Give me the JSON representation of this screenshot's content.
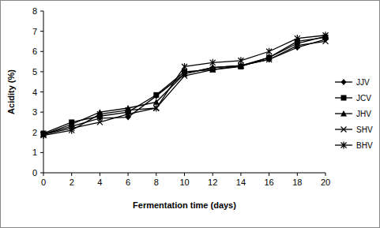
{
  "chart_data": {
    "type": "line",
    "x_label": "Fermentation time (days)",
    "y_label": "Acidity (%)",
    "x": [
      0,
      2,
      4,
      6,
      8,
      10,
      12,
      14,
      16,
      18,
      20
    ],
    "xlim": [
      0,
      20
    ],
    "xticks": [
      0,
      2,
      4,
      6,
      8,
      10,
      12,
      14,
      16,
      18,
      20
    ],
    "ylim": [
      0,
      8
    ],
    "yticks": [
      0,
      1,
      2,
      3,
      4,
      5,
      6,
      7,
      8
    ],
    "grid": false,
    "legend": "right",
    "series": [
      {
        "name": "JJV",
        "color": "#000000",
        "marker": "diamond",
        "values": [
          1.9,
          2.3,
          2.7,
          2.75,
          3.8,
          4.9,
          5.2,
          5.3,
          5.6,
          6.2,
          6.6
        ]
      },
      {
        "name": "JCV",
        "color": "#000000",
        "marker": "square",
        "values": [
          1.95,
          2.5,
          2.8,
          3.0,
          3.85,
          5.0,
          5.1,
          5.25,
          5.7,
          6.5,
          6.7
        ]
      },
      {
        "name": "JHV",
        "color": "#000000",
        "marker": "triangle",
        "values": [
          1.9,
          2.4,
          3.0,
          3.2,
          3.5,
          4.9,
          5.2,
          5.3,
          5.7,
          6.4,
          6.75
        ]
      },
      {
        "name": "SHV",
        "color": "#000000",
        "marker": "x",
        "values": [
          1.9,
          2.2,
          2.5,
          2.9,
          3.2,
          4.8,
          5.1,
          5.3,
          5.6,
          6.3,
          6.5
        ]
      },
      {
        "name": "BHV",
        "color": "#000000",
        "marker": "star",
        "values": [
          1.85,
          2.1,
          2.9,
          3.1,
          3.2,
          5.25,
          5.45,
          5.55,
          6.0,
          6.65,
          6.8
        ]
      }
    ]
  }
}
